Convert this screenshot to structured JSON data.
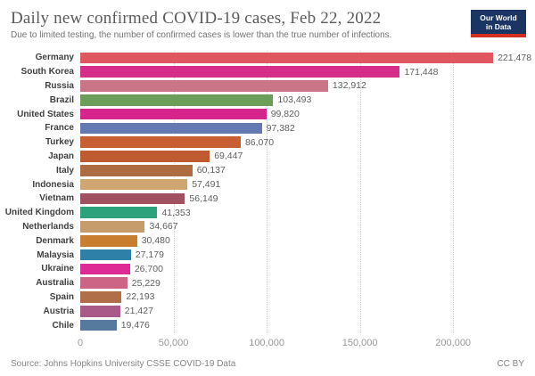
{
  "header": {
    "title": "Daily new confirmed COVID-19 cases, Feb 22, 2022",
    "subtitle": "Due to limited testing, the number of confirmed cases is lower than the true number of infections.",
    "logo": {
      "line1": "Our World",
      "line2": "in Data",
      "bg_color": "#1a3564",
      "accent_color": "#d4301f"
    }
  },
  "chart_data": {
    "type": "bar",
    "orientation": "horizontal",
    "title": "Daily new confirmed COVID-19 cases, Feb 22, 2022",
    "xlabel": "",
    "ylabel": "",
    "grid": "vertical-dotted",
    "legend": "none",
    "xlim": [
      0,
      242000
    ],
    "categories": [
      "Germany",
      "South Korea",
      "Russia",
      "Brazil",
      "United States",
      "France",
      "Turkey",
      "Japan",
      "Italy",
      "Indonesia",
      "Vietnam",
      "United Kingdom",
      "Netherlands",
      "Denmark",
      "Malaysia",
      "Ukraine",
      "Australia",
      "Spain",
      "Austria",
      "Chile"
    ],
    "values": [
      221478,
      171448,
      132912,
      103493,
      99820,
      97382,
      86070,
      69447,
      60137,
      57491,
      56149,
      41353,
      34667,
      30480,
      27179,
      26700,
      25229,
      22193,
      21427,
      19476
    ],
    "value_labels": [
      "221,478",
      "171,448",
      "132,912",
      "103,493",
      "99,820",
      "97,382",
      "86,070",
      "69,447",
      "60,137",
      "57,491",
      "56,149",
      "41,353",
      "34,667",
      "30,480",
      "27,179",
      "26,700",
      "25,229",
      "22,193",
      "21,427",
      "19,476"
    ],
    "colors": [
      "#e0585f",
      "#d62d8b",
      "#c97487",
      "#6b9e58",
      "#d6258a",
      "#6379b0",
      "#c75f33",
      "#c05a31",
      "#ae6c43",
      "#cfa571",
      "#a05060",
      "#2ba17c",
      "#c69c6d",
      "#c97e2f",
      "#2f80a9",
      "#de2a94",
      "#ce6485",
      "#b06f48",
      "#aa5a89",
      "#567a9e"
    ],
    "tick_values": [
      0,
      50000,
      100000,
      150000,
      200000
    ],
    "tick_labels": [
      "0",
      "50,000",
      "100,000",
      "150,000",
      "200,000"
    ]
  },
  "footer": {
    "source": "Source: Johns Hopkins University CSSE COVID-19 Data",
    "license": "CC BY"
  }
}
